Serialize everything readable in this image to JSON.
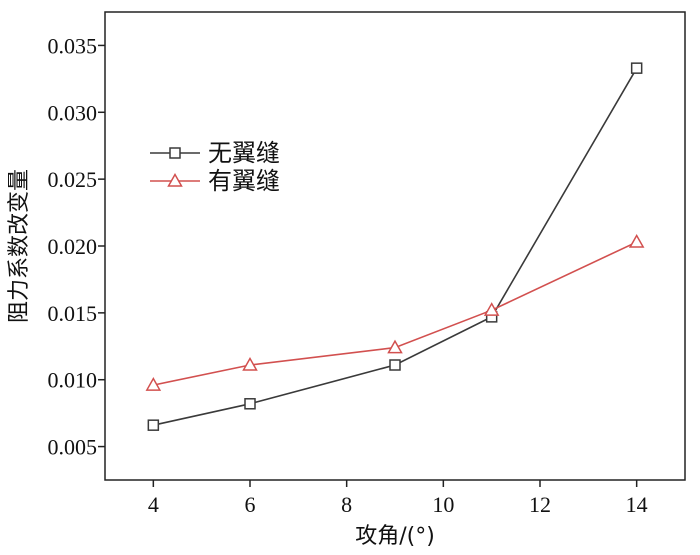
{
  "chart_data": {
    "type": "line",
    "xlabel": "攻角/(°)",
    "ylabel": "阻力系数改变量",
    "xlim": [
      3,
      15
    ],
    "ylim": [
      0.0025,
      0.0375
    ],
    "x": [
      4,
      6,
      9,
      11,
      14
    ],
    "x_ticks": [
      "4",
      "6",
      "8",
      "10",
      "12",
      "14"
    ],
    "y_ticks": [
      "0.005",
      "0.010",
      "0.015",
      "0.020",
      "0.025",
      "0.030",
      "0.035"
    ],
    "legend_position": "upper-left",
    "series": [
      {
        "name": "无翼缝",
        "marker": "square",
        "color": "#3a3a3a",
        "values": [
          0.0066,
          0.0082,
          0.0111,
          0.0147,
          0.0333
        ]
      },
      {
        "name": "有翼缝",
        "marker": "triangle",
        "color": "#d2504f",
        "values": [
          0.0096,
          0.0111,
          0.0124,
          0.0152,
          0.0203
        ]
      }
    ]
  }
}
